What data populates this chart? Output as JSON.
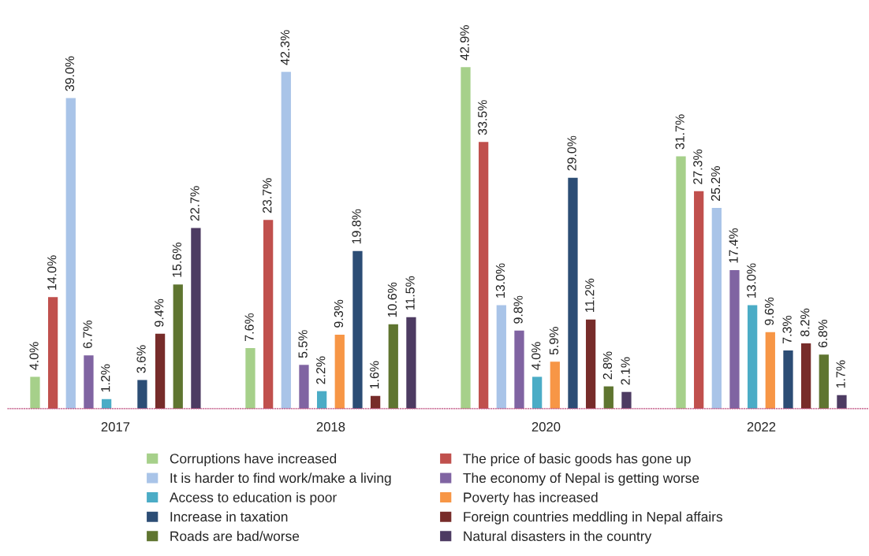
{
  "chart_data": {
    "type": "bar",
    "categories": [
      "2017",
      "2018",
      "2020",
      "2022"
    ],
    "legend": "bottom",
    "grid": false,
    "series": [
      {
        "name": "Corruptions have increased",
        "color": "#a6d08a",
        "values": [
          4.0,
          7.6,
          42.9,
          31.7
        ],
        "value_labels": [
          "4.0%",
          "7.6%",
          "42.9%",
          "31.7%"
        ]
      },
      {
        "name": "The price of basic goods has gone up",
        "color": "#c0504d",
        "values": [
          14.0,
          23.7,
          33.5,
          27.3
        ],
        "value_labels": [
          "14.0%",
          "23.7%",
          "33.5%",
          "27.3%"
        ]
      },
      {
        "name": "It is harder to find work/make a living",
        "color": "#a9c4e8",
        "values": [
          39.0,
          42.3,
          13.0,
          25.2
        ],
        "value_labels": [
          "39.0%",
          "42.3%",
          "13.0%",
          "25.2%"
        ]
      },
      {
        "name": "The economy of Nepal is getting worse",
        "color": "#8064a2",
        "values": [
          6.7,
          5.5,
          9.8,
          17.4
        ],
        "value_labels": [
          "6.7%",
          "5.5%",
          "9.8%",
          "17.4%"
        ]
      },
      {
        "name": "Access to education is poor",
        "color": "#4bacc6",
        "values": [
          1.2,
          2.2,
          4.0,
          13.0
        ],
        "value_labels": [
          "1.2%",
          "2.2%",
          "4.0%",
          "13.0%"
        ]
      },
      {
        "name": "Poverty has increased",
        "color": "#f79646",
        "values": [
          null,
          9.3,
          5.9,
          9.6
        ],
        "value_labels": [
          null,
          "9.3%",
          "5.9%",
          "9.6%"
        ]
      },
      {
        "name": "Increase in taxation",
        "color": "#2c4d75",
        "values": [
          3.6,
          19.8,
          29.0,
          7.3
        ],
        "value_labels": [
          "3.6%",
          "19.8%",
          "29.0%",
          "7.3%"
        ]
      },
      {
        "name": "Foreign countries meddling in Nepal affairs",
        "color": "#772c2a",
        "values": [
          9.4,
          1.6,
          11.2,
          8.2
        ],
        "value_labels": [
          "9.4%",
          "1.6%",
          "11.2%",
          "8.2%"
        ]
      },
      {
        "name": "Roads are bad/worse",
        "color": "#5f7530",
        "values": [
          15.6,
          10.6,
          2.8,
          6.8
        ],
        "value_labels": [
          "15.6%",
          "10.6%",
          "2.8%",
          "6.8%"
        ]
      },
      {
        "name": "Natural disasters in the country",
        "color": "#4d3b62",
        "values": [
          22.7,
          11.5,
          2.1,
          1.7
        ],
        "value_labels": [
          "22.7%",
          "11.5%",
          "2.1%",
          "1.7%"
        ]
      }
    ]
  }
}
